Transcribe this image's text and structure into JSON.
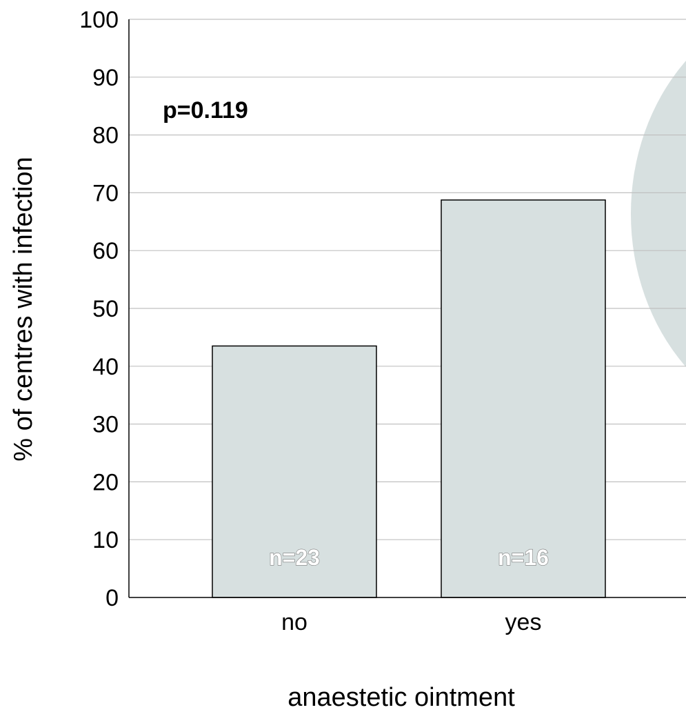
{
  "chart_data": {
    "type": "bar",
    "categories": [
      "no",
      "yes"
    ],
    "values": [
      43.5,
      68.75
    ],
    "bar_labels": [
      "n=23",
      "n=16"
    ],
    "xlabel": "anaestetic ointment",
    "ylabel": "% of centres with infection",
    "annotation": "p=0.119",
    "ylim": [
      0,
      100
    ],
    "yticks": [
      0,
      10,
      20,
      30,
      40,
      50,
      60,
      70,
      80,
      90,
      100
    ],
    "grid": true,
    "colors": {
      "bar_fill": "#d7e0e0",
      "bar_stroke": "#000000",
      "grid": "#c0c0c0",
      "decor": "#d7e0e0"
    }
  }
}
